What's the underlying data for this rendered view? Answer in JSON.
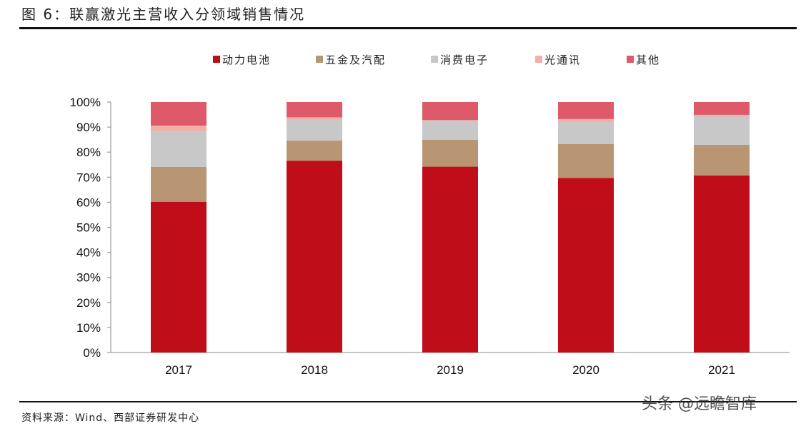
{
  "title": "图 6：联赢激光主营收入分领域销售情况",
  "source": "资料来源：Wind、西部证券研发中心",
  "watermark": "头条 @远瞻智库",
  "chart_data": {
    "type": "bar",
    "stacked": true,
    "percent": true,
    "categories": [
      "2017",
      "2018",
      "2019",
      "2020",
      "2021"
    ],
    "ylim": [
      0,
      100
    ],
    "yticks": [
      "0%",
      "10%",
      "20%",
      "30%",
      "40%",
      "50%",
      "60%",
      "70%",
      "80%",
      "90%",
      "100%"
    ],
    "legend_position": "top",
    "grid": false,
    "series": [
      {
        "name": "动力电池",
        "color": "#C00D1A",
        "values": [
          60.2,
          76.6,
          74.2,
          69.7,
          70.7
        ]
      },
      {
        "name": "五金及汽配",
        "color": "#B89673",
        "values": [
          13.9,
          8.0,
          10.7,
          13.5,
          12.2
        ]
      },
      {
        "name": "消费电子",
        "color": "#C8C8C8",
        "values": [
          14.2,
          8.4,
          7.7,
          8.8,
          11.4
        ]
      },
      {
        "name": "光通讯",
        "color": "#F0B0A8",
        "values": [
          2.3,
          0.9,
          0.2,
          1.2,
          0.6
        ]
      },
      {
        "name": "其他",
        "color": "#DE5A6A",
        "values": [
          9.4,
          6.1,
          7.2,
          6.8,
          5.1
        ]
      }
    ]
  }
}
